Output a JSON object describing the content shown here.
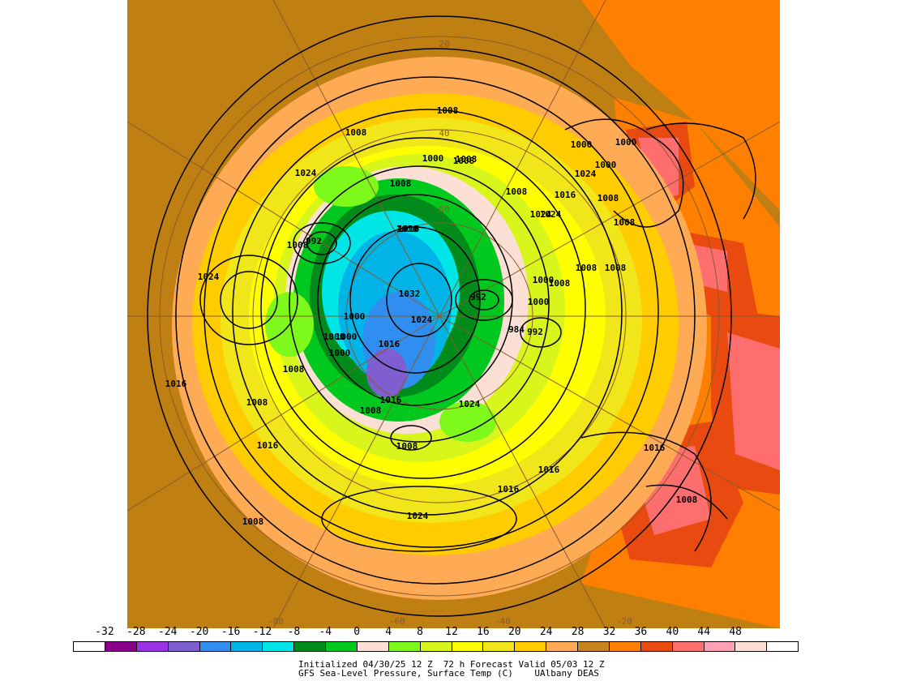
{
  "map": {
    "contour_labels": [
      "1008",
      "1008",
      "1008",
      "1000",
      "1000",
      "1008",
      "1024",
      "1008",
      "1008",
      "1024",
      "1016",
      "1024",
      "1008",
      "1000",
      "1000",
      "992",
      "1008",
      "1016",
      "1024",
      "1032",
      "1024",
      "992",
      "1000",
      "1008",
      "1000",
      "984",
      "992",
      "1008",
      "1016",
      "1024",
      "1016",
      "1000",
      "1000",
      "1000",
      "1000",
      "1008",
      "1016",
      "1008",
      "1016",
      "1008",
      "1008",
      "1016",
      "1024",
      "1016",
      "1016",
      "1016",
      "1008",
      "1008",
      "1024",
      "1008",
      "1008"
    ],
    "grid_labels": [
      "20",
      "40",
      "60",
      "-80",
      "-60",
      "-40",
      "-20"
    ],
    "highlighted_label": "1000"
  },
  "colorbar": {
    "ticks": [
      "-32",
      "-28",
      "-24",
      "-20",
      "-16",
      "-12",
      "-8",
      "-4",
      "0",
      "4",
      "8",
      "12",
      "16",
      "20",
      "24",
      "28",
      "32",
      "36",
      "40",
      "44",
      "48"
    ],
    "colors": [
      "#ffffff",
      "#8b008b",
      "#9a32e6",
      "#7f5fd0",
      "#2f8ef0",
      "#00b4e8",
      "#00e6e6",
      "#008b1a",
      "#00c81e",
      "#fce0d6",
      "#7ef91c",
      "#d8f51c",
      "#ffff00",
      "#f0e61a",
      "#ffcc00",
      "#ffaa55",
      "#c8821e",
      "#ff8000",
      "#e84a10",
      "#ff6e6e",
      "#ffa0b4",
      "#fce0d6",
      "#ffffff"
    ]
  },
  "caption": {
    "line1": "Initialized 04/30/25 12 Z  72 h Forecast Valid 05/03 12 Z",
    "line2": "GFS Sea-Level Pressure, Surface Temp (C)    UAlbany DEAS"
  }
}
